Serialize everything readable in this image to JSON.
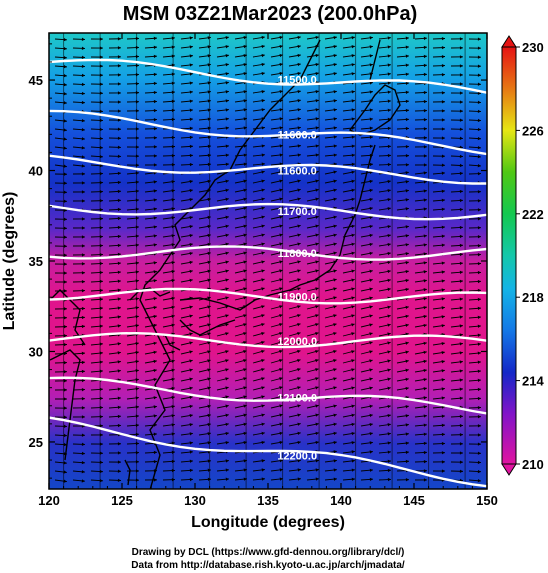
{
  "chart_data": {
    "type": "heatmap",
    "title": "MSM 03Z21Mar2023 (200.0hPa)",
    "xlabel": "Longitude (degrees)",
    "ylabel": "Latitude  (degrees)",
    "xlim": [
      120,
      150
    ],
    "ylim": [
      22.4,
      47.6
    ],
    "x_ticks": [
      120,
      125,
      130,
      135,
      140,
      145,
      150
    ],
    "y_ticks": [
      25,
      30,
      35,
      40,
      45
    ],
    "colorbar": {
      "min": 210,
      "max": 230,
      "ticks": [
        210,
        214,
        218,
        222,
        226,
        230
      ]
    },
    "contours": [
      {
        "label": "11500.0",
        "lat_at_120": 46.0,
        "lat_at_150": 44.3
      },
      {
        "label": "11600.0",
        "lat_at_120": 43.0,
        "lat_at_150": 41.2
      },
      {
        "label": "11600.0",
        "lat_at_120": 40.5,
        "lat_at_150": 39.6
      },
      {
        "label": "11700.0",
        "lat_at_120": 38.0,
        "lat_at_150": 37.6
      },
      {
        "label": "11800.0",
        "lat_at_120": 35.5,
        "lat_at_150": 35.4
      },
      {
        "label": "11900.0",
        "lat_at_120": 33.2,
        "lat_at_150": 32.9
      },
      {
        "label": "12000.0",
        "lat_at_120": 30.7,
        "lat_at_150": 30.5
      },
      {
        "label": "12100.0",
        "lat_at_120": 28.3,
        "lat_at_150": 26.8
      },
      {
        "label": "12200.0",
        "lat_at_120": 26.0,
        "lat_at_150": 22.9
      }
    ],
    "grid": true
  },
  "credits": {
    "line1": "Drawing by DCL (https://www.gfd-dennou.org/library/dcl/)",
    "line2": "Data from http://database.rish.kyoto-u.ac.jp/arch/jmadata/"
  },
  "colors": {
    "magenta": "#e0148c",
    "blue": "#1428c8",
    "cyan": "#14b4e6",
    "green": "#28c878",
    "yellow": "#e6e614",
    "red": "#e61414"
  }
}
